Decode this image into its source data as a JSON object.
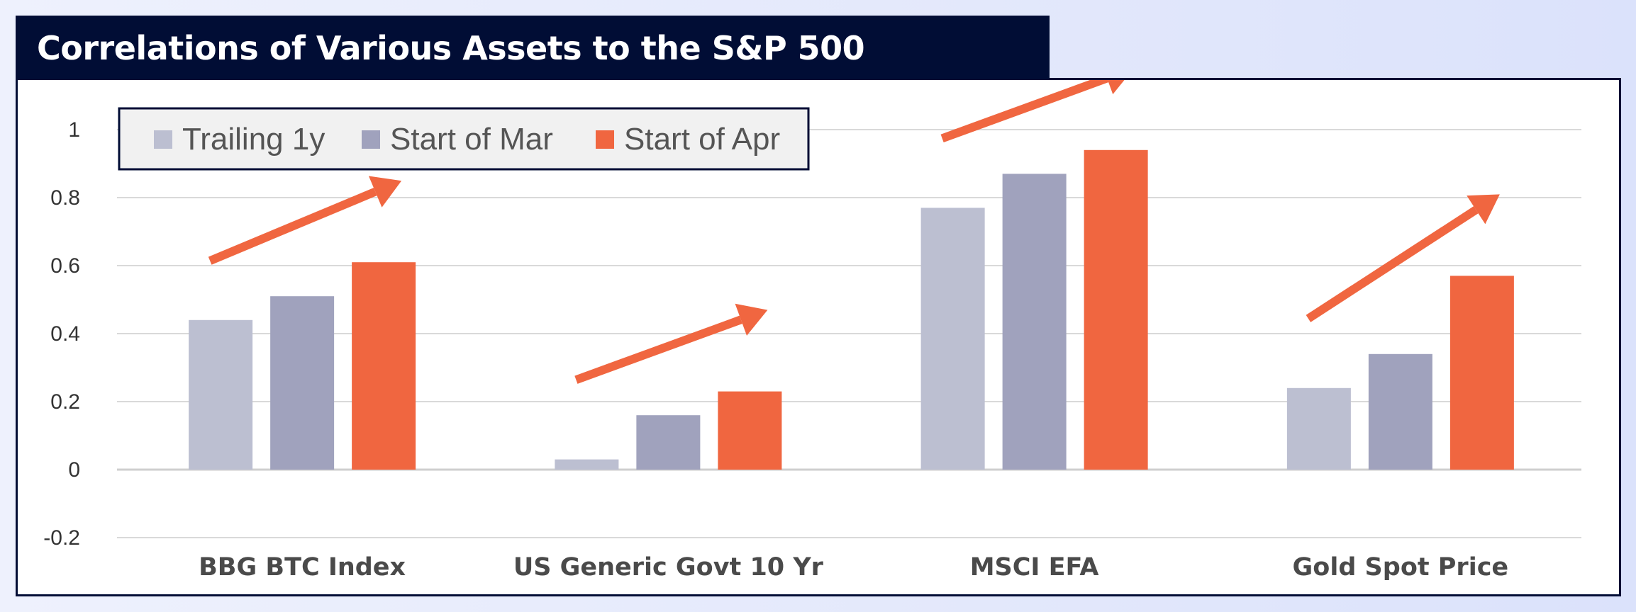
{
  "header": {
    "title": "Correlations of Various Assets to the S&P 500"
  },
  "colors": {
    "title_bg": "#010d35",
    "trailing_1y": "#bcbfd1",
    "start_mar": "#a0a2bd",
    "start_apr": "#f06640",
    "arrow": "#f06640",
    "grid": "#d9d9d9"
  },
  "chart_data": {
    "type": "bar",
    "title": "Correlations of Various Assets to the S&P 500",
    "xlabel": "",
    "ylabel": "",
    "categories": [
      "BBG BTC Index",
      "US Generic Govt 10 Yr",
      "MSCI EFA",
      "Gold Spot Price"
    ],
    "series": [
      {
        "name": "Trailing 1y",
        "color": "#bcbfd1",
        "values": [
          0.44,
          0.03,
          0.77,
          0.24
        ]
      },
      {
        "name": "Start of Mar",
        "color": "#a0a2bd",
        "values": [
          0.51,
          0.16,
          0.87,
          0.34
        ]
      },
      {
        "name": "Start of Apr",
        "color": "#f06640",
        "values": [
          0.61,
          0.23,
          0.94,
          0.57
        ]
      }
    ],
    "ylim": [
      -0.2,
      1
    ],
    "yticks": [
      -0.2,
      0,
      0.2,
      0.4,
      0.6,
      0.8,
      1
    ],
    "ytick_labels": [
      "-0.2",
      "0",
      "0.2",
      "0.4",
      "0.6",
      "0.8",
      "1"
    ],
    "grid": true,
    "legend_position": "top-left",
    "annotations": "upward arrow above each category group"
  }
}
